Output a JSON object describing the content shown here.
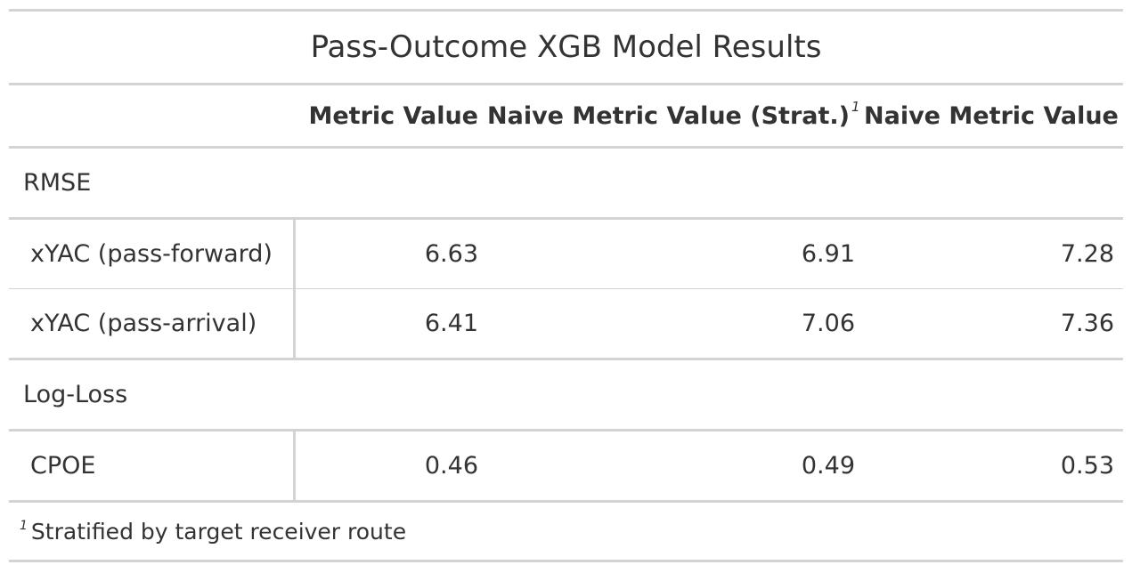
{
  "table": {
    "title": "Pass-Outcome XGB Model Results",
    "columns": [
      "",
      "Metric Value",
      "Naive Metric Value (Strat.)",
      "Naive Metric Value"
    ],
    "column_footnote_mark": "1",
    "groups": [
      {
        "label": "RMSE",
        "rows": [
          {
            "label": "xYAC (pass-forward)",
            "values": [
              "6.63",
              "6.91",
              "7.28"
            ]
          },
          {
            "label": "xYAC (pass-arrival)",
            "values": [
              "6.41",
              "7.06",
              "7.36"
            ]
          }
        ]
      },
      {
        "label": "Log-Loss",
        "rows": [
          {
            "label": "CPOE",
            "values": [
              "0.46",
              "0.49",
              "0.53"
            ]
          }
        ]
      }
    ],
    "footnote": {
      "mark": "1",
      "text": "Stratified by target receiver route"
    }
  }
}
